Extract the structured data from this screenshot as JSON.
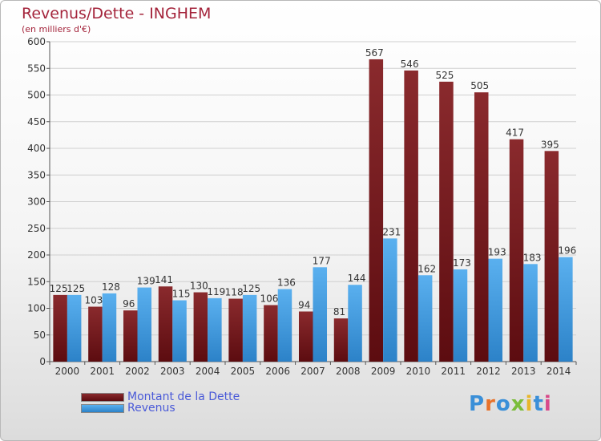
{
  "title": "Revenus/Dette - INGHEM",
  "subtitle": "(en milliers d'€)",
  "logo": "Proxiti",
  "colors": {
    "debt": "#7a1c1f",
    "revenue": "#3e9be0",
    "title": "#a4243b",
    "legend_text": "#4a5ad8"
  },
  "chart_data": {
    "type": "bar",
    "categories": [
      "2000",
      "2001",
      "2002",
      "2003",
      "2004",
      "2005",
      "2006",
      "2007",
      "2008",
      "2009",
      "2010",
      "2011",
      "2012",
      "2013",
      "2014"
    ],
    "series": [
      {
        "name": "Montant de la Dette",
        "values": [
          125,
          103,
          96,
          141,
          130,
          118,
          106,
          94,
          81,
          567,
          546,
          525,
          505,
          417,
          395
        ]
      },
      {
        "name": "Revenus",
        "values": [
          125,
          128,
          139,
          115,
          119,
          125,
          136,
          177,
          144,
          231,
          162,
          173,
          193,
          183,
          196
        ]
      }
    ],
    "ylim": [
      0,
      600
    ],
    "yticks": [
      0,
      50,
      100,
      150,
      200,
      250,
      300,
      350,
      400,
      450,
      500,
      550,
      600
    ],
    "grid": true,
    "legend_position": "bottom-left"
  }
}
